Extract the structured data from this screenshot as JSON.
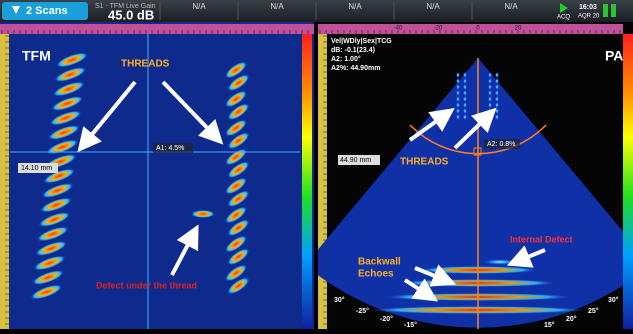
{
  "top_bar": {
    "scans_button": "2 Scans",
    "gain_label": "S1 - TFM Live Gain",
    "gain_value": "45.0 dB",
    "fields": [
      "N/A",
      "N/A",
      "N/A",
      "N/A",
      "N/A"
    ],
    "status": "ACQ",
    "time": "16:03",
    "mode": "AQR 20"
  },
  "left_panel": {
    "title": "TFM",
    "threads_label": "THREADS",
    "cursor_readout": "A1: 4.5%",
    "depth_readout": "14.10 mm",
    "defect_label": "Defect under the thread"
  },
  "right_panel": {
    "title": "PA",
    "ruler_labels": [
      "-40",
      "-20",
      "0",
      "20"
    ],
    "readouts": [
      "Vel|WDly|Sex|TCG",
      "dB: -0.1(23.4)",
      "A2: 1.00°",
      "A2%: 44.90mm"
    ],
    "depth_readout": "44.90 mm",
    "cursor_readout": "A2: 0.8%",
    "threads_label": "THREADS",
    "internal_defect_label": "Internal Defect",
    "backwall_label": [
      "Backwall",
      "Echoes"
    ],
    "angles_left": [
      "30°",
      "-25°",
      "-20°",
      "-15°"
    ],
    "angles_right": [
      "30°",
      "25°",
      "20°",
      "15°"
    ]
  }
}
